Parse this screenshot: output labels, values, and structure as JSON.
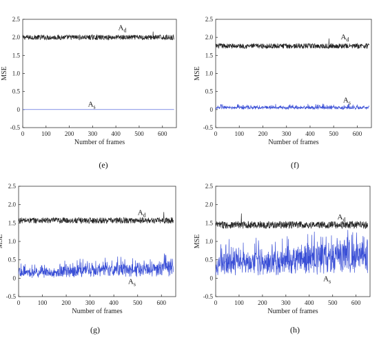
{
  "chart_data": [
    {
      "panel": "(e)",
      "type": "line",
      "xlabel": "Number of frames",
      "ylabel": "MSE",
      "xlim": [
        0,
        660
      ],
      "ylim": [
        -0.5,
        2.5
      ],
      "xticks": [
        "0",
        "100",
        "200",
        "300",
        "400",
        "500",
        "600"
      ],
      "yticks": [
        "-0.5",
        "0",
        "0.5",
        "1.0",
        "1.5",
        "2.0",
        "2.5"
      ],
      "grid": false,
      "series": [
        {
          "label_main": "A",
          "label_sub": "d",
          "color": "#222222",
          "mean": 2.0,
          "amp": 0.07,
          "spike_at": 560,
          "spike_val": 2.16,
          "label_x": 410,
          "label_y": 2.2
        },
        {
          "label_main": "A",
          "label_sub": "s",
          "color": "#3a4fd6",
          "mean": 0.0,
          "amp": 0.0,
          "label_x": 280,
          "label_y": 0.08
        }
      ]
    },
    {
      "panel": "(f)",
      "type": "line",
      "xlabel": "Number of frames",
      "ylabel": "MSE",
      "xlim": [
        0,
        660
      ],
      "ylim": [
        -0.5,
        2.5
      ],
      "xticks": [
        "0",
        "100",
        "200",
        "300",
        "400",
        "500",
        "600"
      ],
      "yticks": [
        "-0.5",
        "0",
        "0.5",
        "1.0",
        "1.5",
        "2.0",
        "2.5"
      ],
      "grid": false,
      "series": [
        {
          "label_main": "A",
          "label_sub": "d",
          "color": "#222222",
          "mean": 1.76,
          "amp": 0.07,
          "spike_at": 480,
          "spike_val": 1.97,
          "label_x": 530,
          "label_y": 1.95
        },
        {
          "label_main": "A",
          "label_sub": "s",
          "color": "#3a4fd6",
          "mean": 0.05,
          "amp": 0.05,
          "floor": 0.0,
          "label_x": 540,
          "label_y": 0.2
        }
      ]
    },
    {
      "panel": "(g)",
      "type": "line",
      "xlabel": "Number of frames",
      "ylabel": "MSE",
      "xlim": [
        0,
        660
      ],
      "ylim": [
        -0.5,
        2.5
      ],
      "xticks": [
        "0",
        "100",
        "200",
        "300",
        "400",
        "500",
        "600"
      ],
      "yticks": [
        "-0.5",
        "0",
        "0.5",
        "1.0",
        "1.5",
        "2.0",
        "2.5"
      ],
      "grid": false,
      "series": [
        {
          "label_main": "A",
          "label_sub": "d",
          "color": "#222222",
          "mean": 1.57,
          "amp": 0.08,
          "spike_at": 610,
          "spike_val": 1.8,
          "label_x": 500,
          "label_y": 1.72
        },
        {
          "label_main": "A",
          "label_sub": "s",
          "color": "#3a4fd6",
          "mean_start": 0.12,
          "mean_end": 0.26,
          "amp": 0.17,
          "floor": 0.0,
          "label_x": 460,
          "label_y": -0.15
        }
      ]
    },
    {
      "panel": "(h)",
      "type": "line",
      "xlabel": "Number of frames",
      "ylabel": "MSE",
      "xlim": [
        0,
        660
      ],
      "ylim": [
        -0.5,
        2.5
      ],
      "xticks": [
        "0",
        "100",
        "200",
        "300",
        "400",
        "500",
        "600"
      ],
      "yticks": [
        "-0.5",
        "0",
        "0.5",
        "1.0",
        "1.5",
        "2.0",
        "2.5"
      ],
      "grid": false,
      "series": [
        {
          "label_main": "A",
          "label_sub": "d",
          "color": "#222222",
          "mean": 1.45,
          "amp": 0.1,
          "spike_at": 110,
          "spike_val": 1.76,
          "label_x": 520,
          "label_y": 1.6
        },
        {
          "label_main": "A",
          "label_sub": "s",
          "color": "#3a4fd6",
          "mean_start": 0.32,
          "mean_end": 0.62,
          "amp": 0.3,
          "floor": 0.0,
          "label_x": 460,
          "label_y": -0.08
        }
      ]
    }
  ]
}
